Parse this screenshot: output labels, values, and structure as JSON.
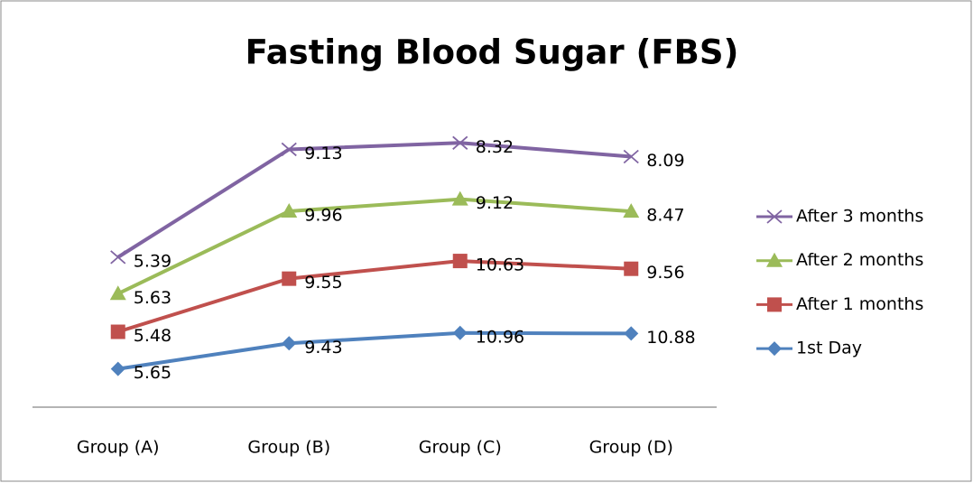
{
  "chart_data": {
    "type": "line",
    "stacked": true,
    "title": "Fasting Blood Sugar (FBS)",
    "categories": [
      "Group (A)",
      "Group (B)",
      "Group (C)",
      "Group (D)"
    ],
    "ylim": [
      0,
      45
    ],
    "legend": "right",
    "series": [
      {
        "name": "1st Day",
        "color": "#4f81bd",
        "marker": "diamond",
        "values": [
          5.65,
          9.43,
          10.96,
          10.88
        ]
      },
      {
        "name": "After 1 months",
        "color": "#c0504d",
        "marker": "square",
        "values": [
          5.48,
          9.55,
          10.63,
          9.56
        ]
      },
      {
        "name": "After 2 months",
        "color": "#9bbb59",
        "marker": "triangle",
        "values": [
          5.63,
          9.96,
          9.12,
          8.47
        ]
      },
      {
        "name": "After 3 months",
        "color": "#8064a2",
        "marker": "x",
        "values": [
          5.39,
          9.13,
          8.32,
          8.09
        ]
      }
    ]
  }
}
